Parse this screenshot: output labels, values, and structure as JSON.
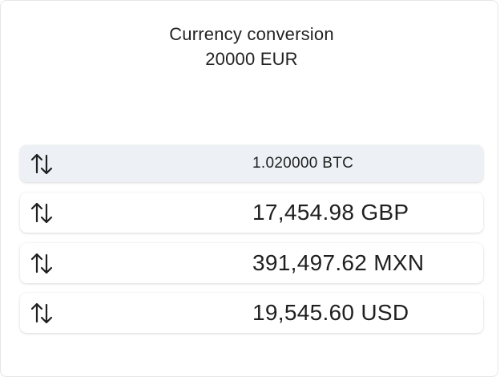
{
  "header": {
    "title": "Currency conversion",
    "amount": "20000 EUR"
  },
  "conversions": [
    {
      "value": "1.020000 BTC",
      "selected": true,
      "icon": "swap-arrows-icon"
    },
    {
      "value": "17,454.98 GBP",
      "selected": false,
      "icon": "swap-arrows-icon"
    },
    {
      "value": "391,497.62 MXN",
      "selected": false,
      "icon": "swap-arrows-icon"
    },
    {
      "value": "19,545.60 USD",
      "selected": false,
      "icon": "swap-arrows-icon"
    }
  ],
  "colors": {
    "selected_row_bg": "#edf1f5",
    "text": "#1f1f1f"
  }
}
